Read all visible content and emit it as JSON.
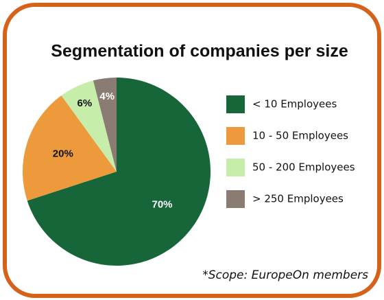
{
  "chart_data": {
    "type": "pie",
    "title": "Segmentation of companies per size",
    "categories": [
      "< 10 Employees",
      "10 - 50 Employees",
      "50 - 200 Employees",
      "> 250 Employees"
    ],
    "values": [
      70,
      20,
      6,
      4
    ],
    "value_labels": [
      "70%",
      "20%",
      "6%",
      "4%"
    ],
    "colors": [
      "#176639",
      "#ec9a3c",
      "#c6edaa",
      "#8a7c72"
    ],
    "label_colors": [
      "#ffffff",
      "#111111",
      "#111111",
      "#ffffff"
    ],
    "legend": "right",
    "annotation": "*Scope: EuropeOn members"
  }
}
